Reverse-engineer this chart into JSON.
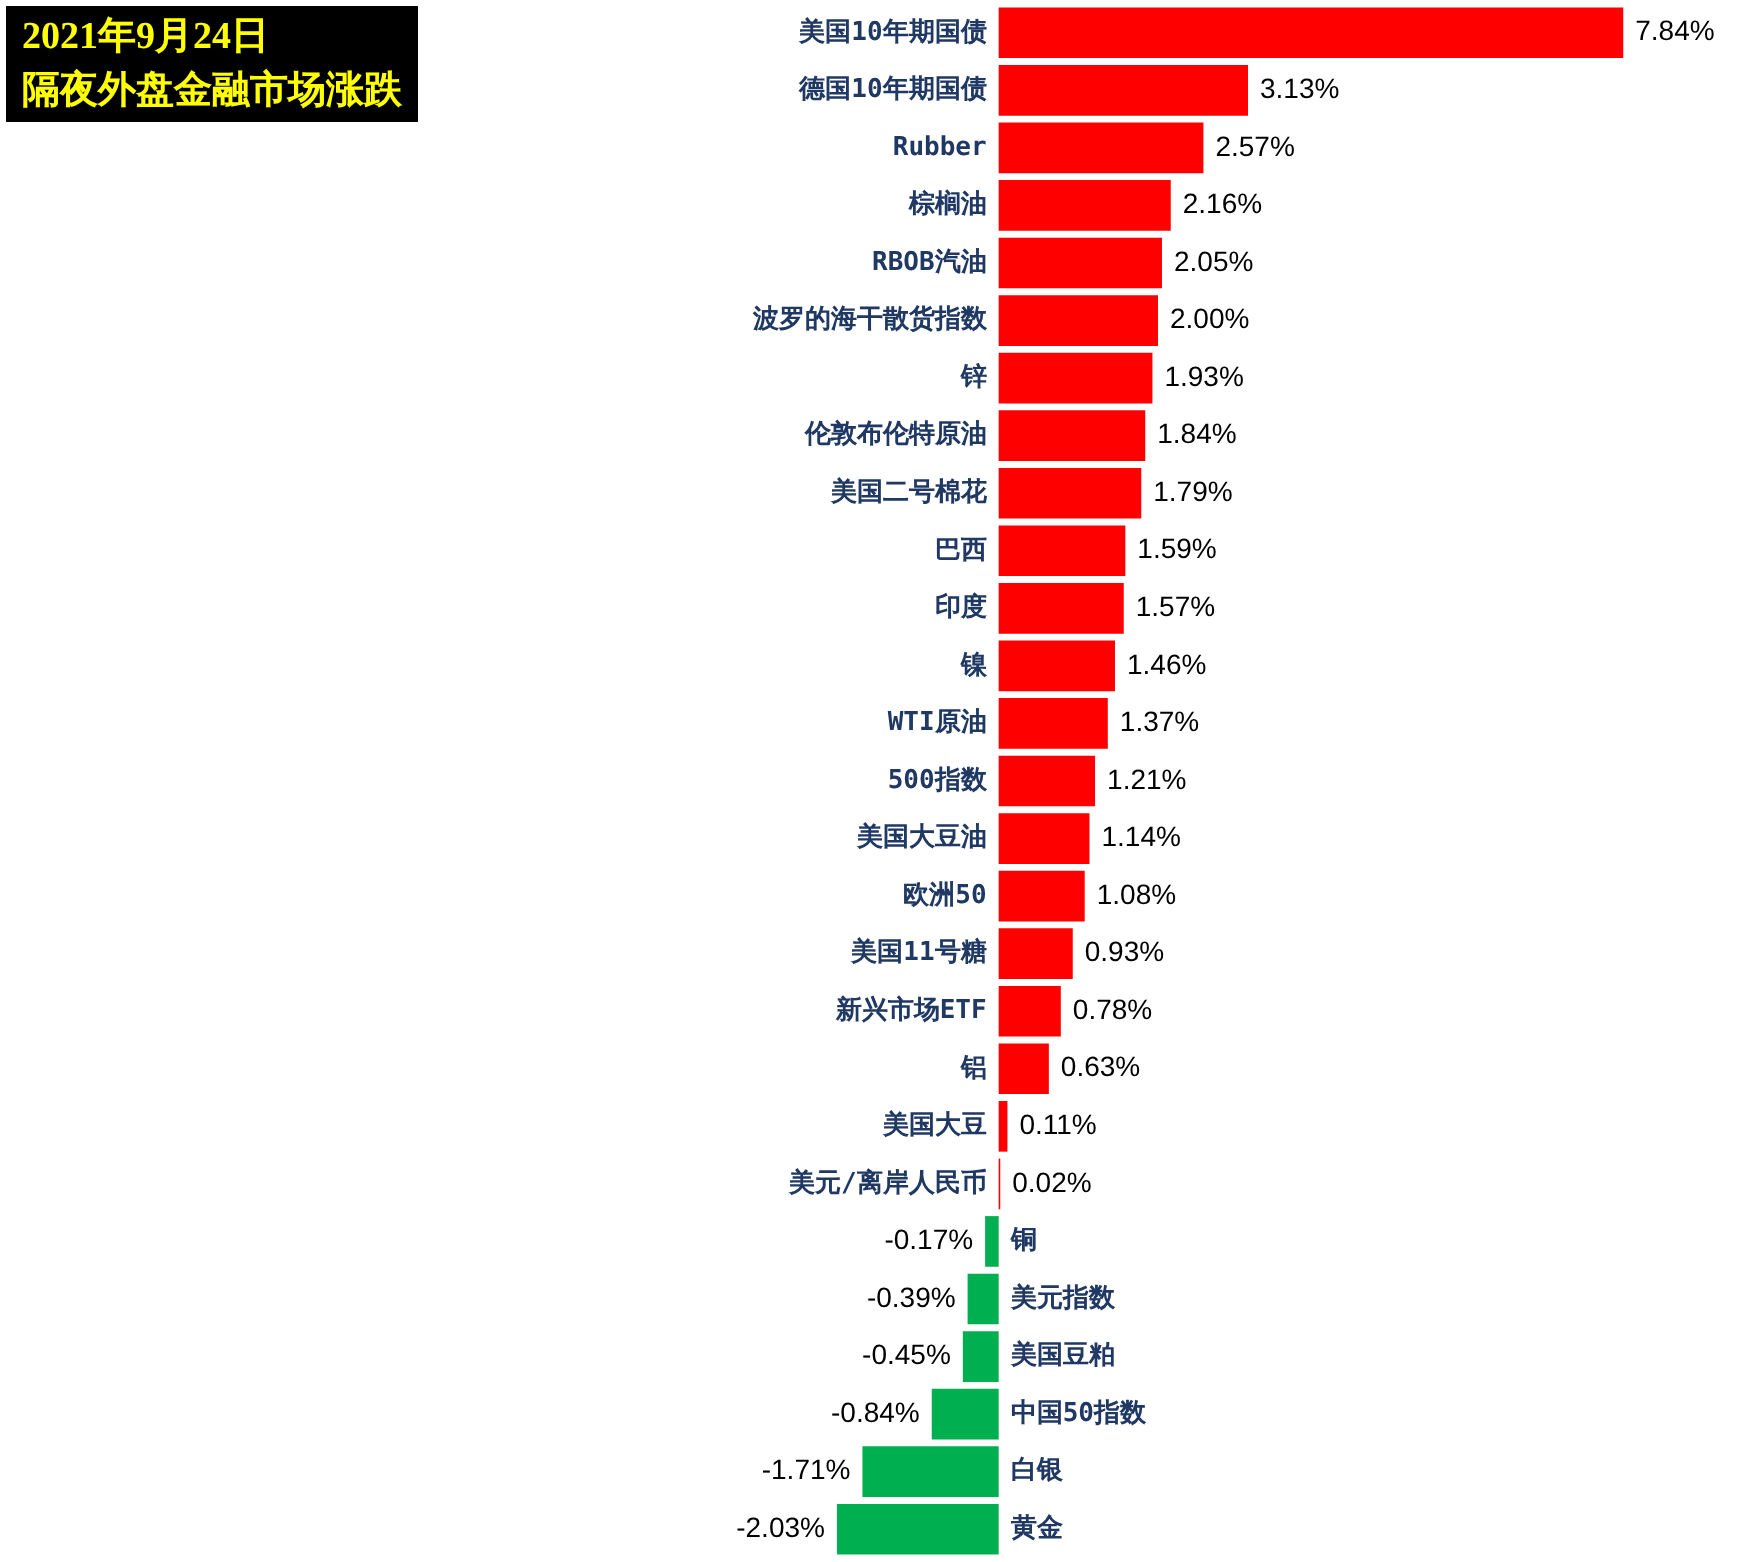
{
  "chart_data": {
    "type": "bar",
    "orientation": "horizontal",
    "title": "2021年9月24日",
    "subtitle": "隔夜外盘金融市场涨跌",
    "categories": [
      "美国10年期国债",
      "德国10年期国债",
      "Rubber",
      "棕榈油",
      "RBOB汽油",
      "波罗的海干散货指数",
      "锌",
      "伦敦布伦特原油",
      "美国二号棉花",
      "巴西",
      "印度",
      "镍",
      "WTI原油",
      "500指数",
      "美国大豆油",
      "欧洲50",
      "美国11号糖",
      "新兴市场ETF",
      "铝",
      "美国大豆",
      "美元/离岸人民币",
      "铜",
      "美元指数",
      "美国豆粕",
      "中国50指数",
      "白银",
      "黄金"
    ],
    "values": [
      7.84,
      3.13,
      2.57,
      2.16,
      2.05,
      2.0,
      1.93,
      1.84,
      1.79,
      1.59,
      1.57,
      1.46,
      1.37,
      1.21,
      1.14,
      1.08,
      0.93,
      0.78,
      0.63,
      0.11,
      0.02,
      -0.17,
      -0.39,
      -0.45,
      -0.84,
      -1.71,
      -2.03
    ],
    "value_labels": [
      "7.84%",
      "3.13%",
      "2.57%",
      "2.16%",
      "2.05%",
      "2.00%",
      "1.93%",
      "1.84%",
      "1.79%",
      "1.59%",
      "1.57%",
      "1.46%",
      "1.37%",
      "1.21%",
      "1.14%",
      "1.08%",
      "0.93%",
      "0.78%",
      "0.63%",
      "0.11%",
      "0.02%",
      "-0.17%",
      "-0.39%",
      "-0.45%",
      "-0.84%",
      "-1.71%",
      "-2.03%"
    ],
    "colors": [
      "#ff0000",
      "#ff0000",
      "#ff0000",
      "#ff0000",
      "#ff0000",
      "#ff0000",
      "#ff0000",
      "#ff0000",
      "#ff0000",
      "#ff0000",
      "#ff0000",
      "#ff0000",
      "#ff0000",
      "#ff0000",
      "#ff0000",
      "#ff0000",
      "#ff0000",
      "#ff0000",
      "#ff0000",
      "#ff0000",
      "#ff0000",
      "#00b050",
      "#00b050",
      "#00b050",
      "#00b050",
      "#00b050",
      "#00b050"
    ],
    "legend": false
  }
}
